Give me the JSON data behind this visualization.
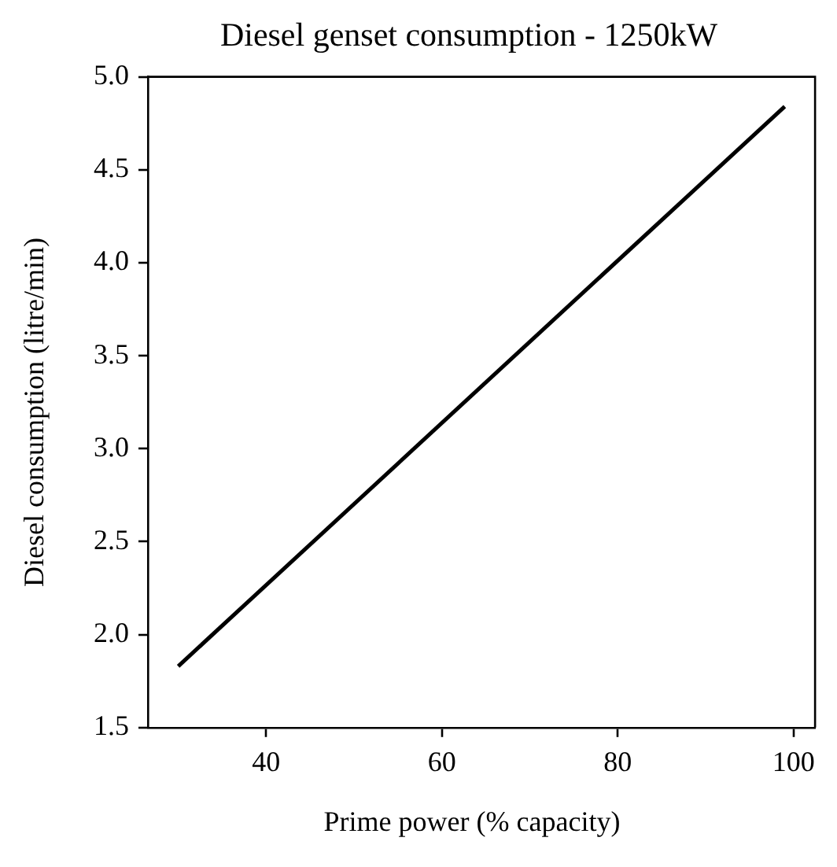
{
  "chart_data": {
    "type": "line",
    "title": "Diesel genset consumption - 1250kW",
    "xlabel": "Prime power (% capacity)",
    "ylabel": "Diesel consumption (litre/min)",
    "x": [
      30,
      99
    ],
    "series": [
      {
        "color": "#000000",
        "values": [
          1.83,
          4.84
        ]
      }
    ],
    "xlim": [
      26.55,
      102.45
    ],
    "xticks": [
      40,
      60,
      80,
      100
    ],
    "ylim": [
      1.5,
      5.0
    ],
    "yticks": [
      {
        "value": 1.5,
        "label": "1.5"
      },
      {
        "value": 2.0,
        "label": "2.0"
      },
      {
        "value": 2.5,
        "label": "2.5"
      },
      {
        "value": 3.0,
        "label": "3.0"
      },
      {
        "value": 3.5,
        "label": "3.5"
      },
      {
        "value": 4.0,
        "label": "4.0"
      },
      {
        "value": 4.5,
        "label": "4.5"
      },
      {
        "value": 5.0,
        "label": "5.0"
      }
    ],
    "grid": false,
    "legend": false,
    "marker": "none",
    "line_style": "solid"
  }
}
